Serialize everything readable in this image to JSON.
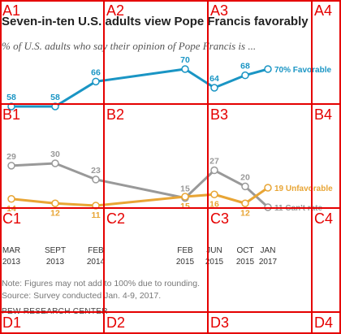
{
  "chart_data": {
    "type": "line",
    "title": "Seven-in-ten U.S. adults view Pope Francis favorably",
    "subtitle": "% of U.S. adults who say their opinion of Pope Francis is ...",
    "categories": [
      "MAR 2013",
      "SEPT 2013",
      "FEB 2014",
      "FEB 2015",
      "JUN 2015",
      "OCT 2015",
      "JAN 2017"
    ],
    "x_tick_labels": [
      {
        "line1": "MAR",
        "line2": "2013"
      },
      {
        "line1": "SEPT",
        "line2": "2013"
      },
      {
        "line1": "FEB",
        "line2": "2014"
      },
      {
        "line1": "FEB",
        "line2": "2015"
      },
      {
        "line1": "JUN",
        "line2": "2015"
      },
      {
        "line1": "OCT",
        "line2": "2015"
      },
      {
        "line1": "JAN",
        "line2": "2017"
      }
    ],
    "series": [
      {
        "name": "Favorable",
        "color": "#1a95c4",
        "values": [
          58,
          58,
          66,
          70,
          64,
          68,
          70
        ],
        "labels": [
          "58",
          "58",
          "66",
          "70",
          "64",
          "68",
          "70%"
        ]
      },
      {
        "name": "Can't rate",
        "color": "#999999",
        "values": [
          29,
          30,
          23,
          15,
          27,
          20,
          11
        ],
        "labels": [
          "29",
          "30",
          "23",
          "15",
          "27",
          "20",
          "11"
        ]
      },
      {
        "name": "Unfavorable",
        "color": "#e8a535",
        "values": [
          14,
          12,
          11,
          15,
          16,
          12,
          19
        ],
        "labels": [
          "14",
          "12",
          "11",
          "15",
          "16",
          "12",
          "19"
        ]
      }
    ],
    "grid": false
  },
  "note": "Note: Figures may not add to 100% due to rounding.",
  "source": "Source: Survey conducted Jan. 4-9, 2017.",
  "org": "PEW RESEARCH CENTER",
  "grid_overlay": {
    "color": "#e50000",
    "labels": [
      "A1",
      "A2",
      "A3",
      "A4",
      "B1",
      "B2",
      "B3",
      "B4",
      "C1",
      "C2",
      "C3",
      "C4",
      "D1",
      "D2",
      "D3",
      "D4"
    ]
  }
}
